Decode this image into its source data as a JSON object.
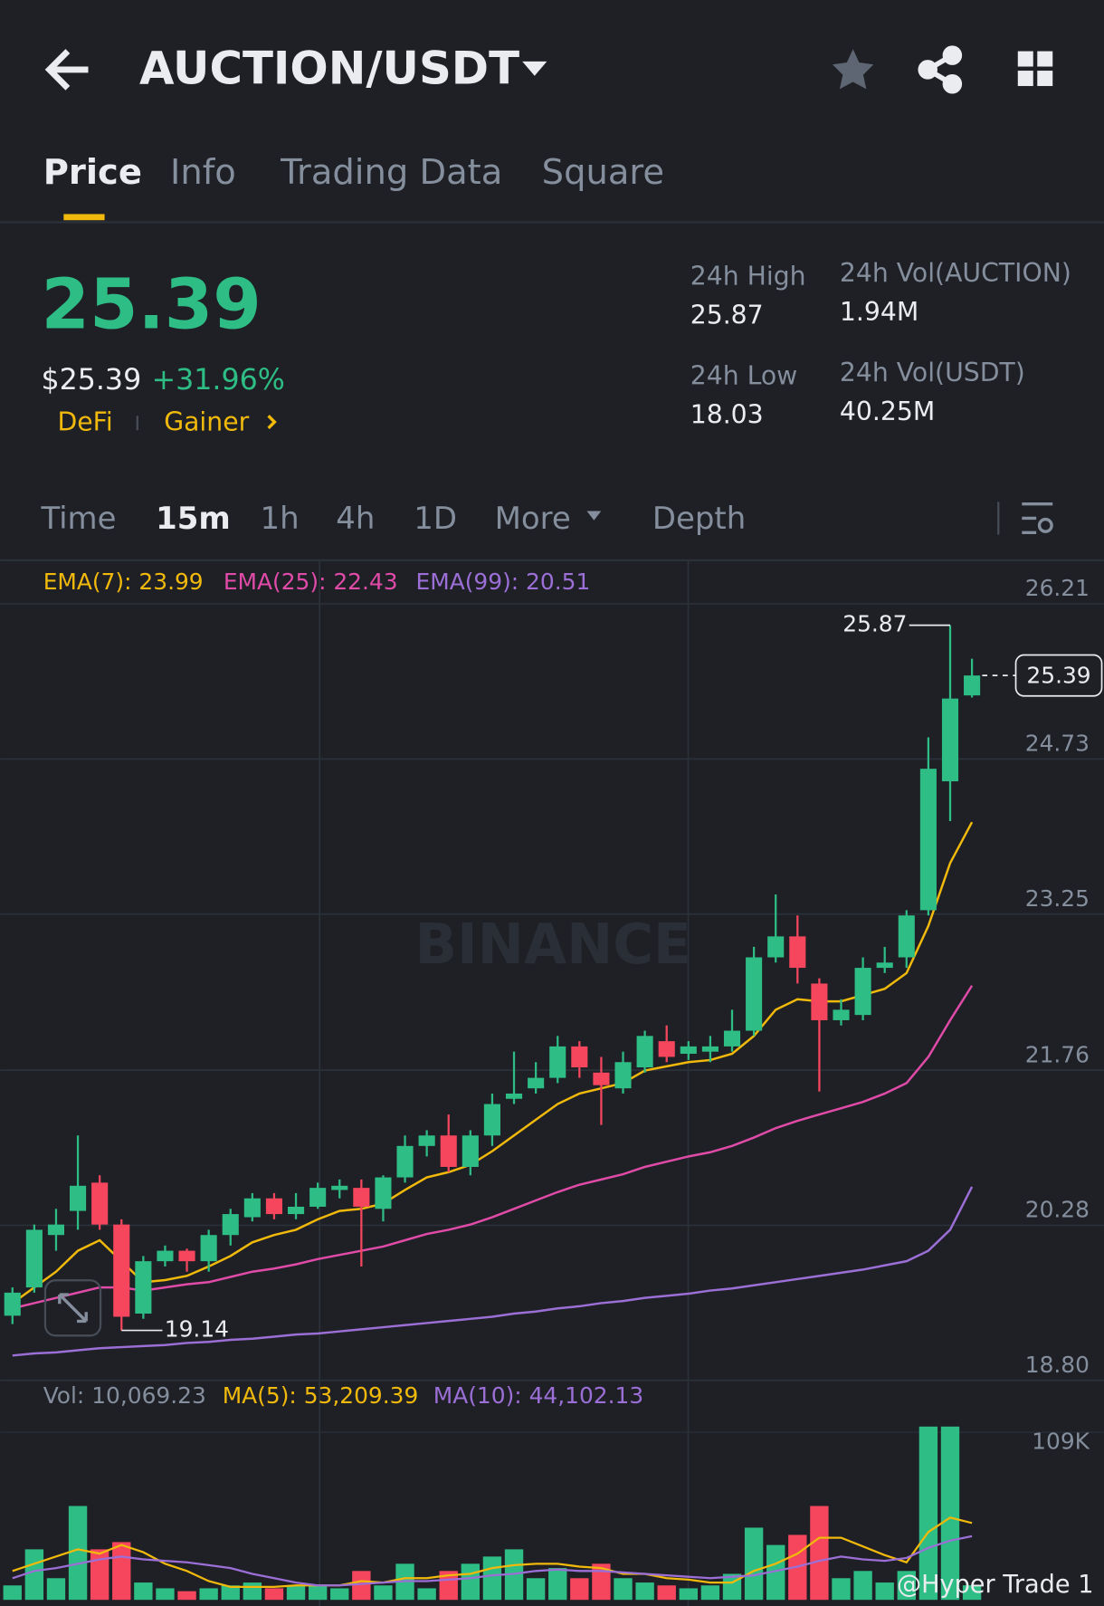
{
  "header": {
    "title": "AUCTION/USDT"
  },
  "tabs": [
    "Price",
    "Info",
    "Trading Data",
    "Square"
  ],
  "summary": {
    "price": "25.39",
    "usd_price": "$25.39",
    "change": "+31.96%",
    "tags": [
      "DeFi",
      "Gainer"
    ]
  },
  "stats": [
    {
      "label": "24h High",
      "value": "25.87"
    },
    {
      "label": "24h Vol(AUCTION)",
      "value": "1.94M"
    },
    {
      "label": "24h Low",
      "value": "18.03"
    },
    {
      "label": "24h Vol(USDT)",
      "value": "40.25M"
    }
  ],
  "intervals": [
    "Time",
    "15m",
    "1h",
    "4h",
    "1D",
    "More",
    "Depth"
  ],
  "watermark": "BINANCE",
  "credit": "@Hyper Trade 1",
  "chart_data": {
    "type": "candlestick",
    "up_color": "#2ebd85",
    "down_color": "#f6465d",
    "ylim": [
      18.66,
      26.48
    ],
    "yticks": [
      26.21,
      24.73,
      23.25,
      21.76,
      20.28,
      {
        "value": 18.8,
        "label": "18.80"
      }
    ],
    "high_marker": 25.87,
    "low_marker": 19.14,
    "last_price": 25.39,
    "open": [
      19.28,
      19.55,
      20.05,
      20.28,
      20.55,
      20.15,
      19.3,
      19.8,
      19.9,
      19.8,
      20.05,
      20.22,
      20.4,
      20.25,
      20.32,
      20.48,
      20.5,
      20.3,
      20.6,
      20.9,
      21.0,
      20.7,
      21.0,
      21.35,
      21.45,
      21.55,
      21.85,
      21.6,
      21.45,
      21.65,
      21.9,
      21.78,
      21.8,
      21.85,
      22.0,
      22.7,
      22.9,
      22.45,
      22.1,
      22.15,
      22.6,
      22.7,
      23.15,
      24.38,
      25.2
    ],
    "high": [
      19.55,
      20.15,
      20.3,
      21.0,
      20.62,
      20.2,
      19.85,
      19.95,
      19.92,
      20.1,
      20.3,
      20.45,
      20.45,
      20.45,
      20.55,
      20.58,
      20.58,
      20.62,
      21.0,
      21.05,
      21.2,
      21.05,
      21.4,
      21.8,
      21.7,
      21.95,
      21.9,
      21.75,
      21.8,
      22.0,
      22.05,
      21.9,
      21.95,
      22.2,
      22.8,
      23.3,
      23.1,
      22.5,
      22.3,
      22.7,
      22.8,
      23.15,
      24.8,
      25.87,
      25.55
    ],
    "low": [
      19.2,
      19.5,
      19.9,
      20.1,
      20.1,
      19.14,
      19.25,
      19.75,
      19.7,
      19.7,
      19.95,
      20.18,
      20.2,
      20.2,
      20.3,
      20.4,
      19.75,
      20.18,
      20.55,
      20.8,
      20.65,
      20.62,
      20.9,
      21.3,
      21.4,
      21.5,
      21.55,
      21.1,
      21.4,
      21.6,
      21.7,
      21.72,
      21.7,
      21.8,
      21.95,
      22.65,
      22.45,
      21.42,
      22.05,
      22.1,
      22.55,
      22.6,
      23.1,
      24.0,
      25.18
    ],
    "close": [
      19.5,
      20.1,
      20.15,
      20.52,
      20.15,
      19.27,
      19.8,
      19.9,
      19.8,
      20.05,
      20.25,
      20.4,
      20.25,
      20.32,
      20.5,
      20.52,
      20.32,
      20.6,
      20.9,
      21.0,
      20.7,
      21.0,
      21.3,
      21.4,
      21.55,
      21.85,
      21.65,
      21.48,
      21.7,
      21.95,
      21.75,
      21.85,
      21.85,
      22.0,
      22.7,
      22.9,
      22.6,
      22.1,
      22.2,
      22.6,
      22.65,
      23.1,
      24.5,
      25.17,
      25.39
    ],
    "series": [
      {
        "name": "EMA(7): 23.99",
        "color": "#f0b90b",
        "values": [
          19.4,
          19.55,
          19.7,
          19.9,
          20.0,
          19.8,
          19.6,
          19.62,
          19.66,
          19.75,
          19.85,
          19.98,
          20.05,
          20.1,
          20.2,
          20.28,
          20.3,
          20.35,
          20.48,
          20.6,
          20.65,
          20.72,
          20.85,
          21.0,
          21.15,
          21.3,
          21.4,
          21.45,
          21.5,
          21.62,
          21.66,
          21.7,
          21.72,
          21.78,
          21.95,
          22.2,
          22.3,
          22.28,
          22.28,
          22.34,
          22.4,
          22.55,
          23.0,
          23.6,
          23.99
        ]
      },
      {
        "name": "EMA(25): 22.43",
        "color": "#e04ba8",
        "values": [
          19.35,
          19.4,
          19.45,
          19.5,
          19.55,
          19.55,
          19.52,
          19.55,
          19.58,
          19.6,
          19.65,
          19.7,
          19.73,
          19.77,
          19.82,
          19.86,
          19.9,
          19.94,
          20.0,
          20.06,
          20.1,
          20.15,
          20.22,
          20.3,
          20.38,
          20.46,
          20.53,
          20.58,
          20.63,
          20.7,
          20.75,
          20.8,
          20.84,
          20.9,
          20.98,
          21.07,
          21.14,
          21.2,
          21.26,
          21.32,
          21.4,
          21.5,
          21.75,
          22.1,
          22.43
        ]
      },
      {
        "name": "EMA(99): 20.51",
        "color": "#9b6fd6",
        "values": [
          18.9,
          18.92,
          18.93,
          18.95,
          18.97,
          18.98,
          18.99,
          19.0,
          19.02,
          19.03,
          19.05,
          19.06,
          19.08,
          19.1,
          19.11,
          19.13,
          19.15,
          19.17,
          19.19,
          19.21,
          19.23,
          19.25,
          19.27,
          19.3,
          19.32,
          19.35,
          19.37,
          19.4,
          19.42,
          19.45,
          19.47,
          19.49,
          19.52,
          19.54,
          19.57,
          19.6,
          19.63,
          19.66,
          19.69,
          19.72,
          19.76,
          19.8,
          19.9,
          20.1,
          20.51
        ]
      }
    ],
    "volume": {
      "label": "Vol: 10,069.23",
      "ylim": [
        0,
        122000
      ],
      "yticks": [
        {
          "value": 109000,
          "label": "109K"
        }
      ],
      "values": [
        10000,
        35000,
        15000,
        65000,
        35000,
        40000,
        12000,
        8000,
        6000,
        8000,
        10000,
        12000,
        8000,
        10000,
        10000,
        8000,
        20000,
        10000,
        25000,
        8000,
        20000,
        25000,
        30000,
        35000,
        15000,
        22000,
        15000,
        25000,
        15000,
        12000,
        10000,
        8000,
        10000,
        18000,
        50000,
        38000,
        45000,
        65000,
        15000,
        20000,
        12000,
        20000,
        120000,
        120000,
        10069.23
      ],
      "series": [
        {
          "name": "MA(5): 53,209.39",
          "color": "#f0b90b",
          "values": [
            20000,
            25000,
            30000,
            35000,
            32000,
            38000,
            33000,
            25000,
            20000,
            13000,
            9000,
            9000,
            9000,
            10000,
            10000,
            10000,
            13000,
            12000,
            15000,
            15000,
            17000,
            18000,
            22000,
            24000,
            25000,
            25000,
            23000,
            22000,
            18000,
            18000,
            15000,
            14000,
            12000,
            12000,
            20000,
            25000,
            32000,
            43000,
            43000,
            37000,
            31000,
            26000,
            47000,
            57000,
            53209.39
          ]
        },
        {
          "name": "MA(10): 44,102.13",
          "color": "#9b6fd6",
          "values": [
            15000,
            20000,
            22000,
            25000,
            28000,
            30000,
            28000,
            27000,
            26000,
            24000,
            22000,
            18000,
            15000,
            12000,
            10000,
            10000,
            11000,
            12000,
            13000,
            13000,
            14000,
            15000,
            17000,
            18000,
            20000,
            21000,
            20000,
            20000,
            19000,
            18000,
            17000,
            16000,
            15000,
            16000,
            17000,
            20000,
            23000,
            27000,
            30000,
            28000,
            27000,
            29000,
            36000,
            41000,
            44102.13
          ]
        }
      ]
    }
  }
}
